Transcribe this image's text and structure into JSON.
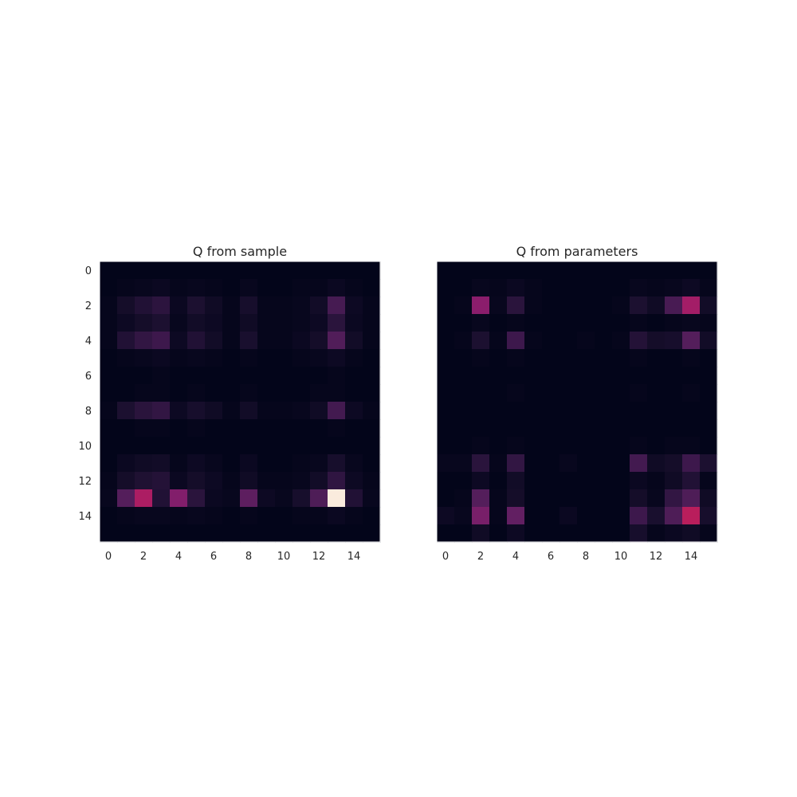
{
  "figure": {
    "background": "#ffffff"
  },
  "chart_data": [
    {
      "type": "heatmap",
      "title": "Q from sample",
      "colormap": "rocket",
      "colorbar": false,
      "vmin": 0,
      "vmax": 1,
      "x_ticks": [
        0,
        2,
        4,
        6,
        8,
        10,
        12,
        14
      ],
      "y_ticks": [
        0,
        2,
        4,
        6,
        8,
        10,
        12,
        14
      ],
      "show_y_tick_labels": true,
      "values": [
        [
          0.0,
          0.0,
          0.0,
          0.0,
          0.0,
          0.0,
          0.0,
          0.0,
          0.0,
          0.0,
          0.0,
          0.0,
          0.0,
          0.0,
          0.0,
          0.0
        ],
        [
          0.0,
          0.01,
          0.02,
          0.03,
          0.01,
          0.02,
          0.01,
          0.0,
          0.02,
          0.0,
          0.0,
          0.01,
          0.01,
          0.03,
          0.01,
          0.0
        ],
        [
          0.01,
          0.07,
          0.12,
          0.16,
          0.03,
          0.1,
          0.05,
          0.01,
          0.08,
          0.01,
          0.01,
          0.02,
          0.06,
          0.25,
          0.04,
          0.01
        ],
        [
          0.01,
          0.04,
          0.07,
          0.1,
          0.02,
          0.06,
          0.04,
          0.01,
          0.05,
          0.01,
          0.01,
          0.02,
          0.04,
          0.15,
          0.03,
          0.01
        ],
        [
          0.01,
          0.12,
          0.18,
          0.22,
          0.04,
          0.12,
          0.06,
          0.01,
          0.09,
          0.01,
          0.01,
          0.03,
          0.07,
          0.29,
          0.06,
          0.01
        ],
        [
          0.0,
          0.01,
          0.02,
          0.03,
          0.01,
          0.02,
          0.01,
          0.0,
          0.01,
          0.0,
          0.0,
          0.01,
          0.02,
          0.04,
          0.01,
          0.0
        ],
        [
          0.0,
          0.0,
          0.0,
          0.01,
          0.0,
          0.0,
          0.0,
          0.0,
          0.0,
          0.0,
          0.0,
          0.0,
          0.0,
          0.01,
          0.0,
          0.0
        ],
        [
          0.0,
          0.0,
          0.01,
          0.01,
          0.0,
          0.01,
          0.0,
          0.0,
          0.01,
          0.0,
          0.0,
          0.0,
          0.01,
          0.01,
          0.0,
          0.0
        ],
        [
          0.01,
          0.1,
          0.15,
          0.18,
          0.04,
          0.08,
          0.05,
          0.01,
          0.06,
          0.01,
          0.01,
          0.02,
          0.05,
          0.24,
          0.04,
          0.01
        ],
        [
          0.0,
          0.0,
          0.01,
          0.01,
          0.0,
          0.01,
          0.0,
          0.0,
          0.0,
          0.0,
          0.0,
          0.0,
          0.0,
          0.01,
          0.0,
          0.0
        ],
        [
          0.0,
          0.0,
          0.0,
          0.0,
          0.0,
          0.0,
          0.0,
          0.0,
          0.0,
          0.0,
          0.0,
          0.0,
          0.0,
          0.0,
          0.0,
          0.0
        ],
        [
          0.0,
          0.03,
          0.05,
          0.06,
          0.01,
          0.04,
          0.02,
          0.0,
          0.03,
          0.0,
          0.0,
          0.01,
          0.02,
          0.08,
          0.02,
          0.0
        ],
        [
          0.01,
          0.07,
          0.11,
          0.13,
          0.03,
          0.07,
          0.04,
          0.01,
          0.05,
          0.01,
          0.01,
          0.02,
          0.06,
          0.17,
          0.04,
          0.01
        ],
        [
          0.02,
          0.3,
          0.58,
          0.12,
          0.45,
          0.15,
          0.03,
          0.02,
          0.33,
          0.04,
          0.02,
          0.08,
          0.28,
          1.0,
          0.12,
          0.02
        ],
        [
          0.0,
          0.01,
          0.02,
          0.02,
          0.01,
          0.02,
          0.01,
          0.0,
          0.01,
          0.0,
          0.0,
          0.01,
          0.01,
          0.03,
          0.01,
          0.0
        ],
        [
          0.0,
          0.0,
          0.0,
          0.0,
          0.0,
          0.0,
          0.0,
          0.0,
          0.0,
          0.0,
          0.0,
          0.0,
          0.0,
          0.0,
          0.0,
          0.0
        ]
      ]
    },
    {
      "type": "heatmap",
      "title": "Q from parameters",
      "colormap": "rocket",
      "colorbar": false,
      "vmin": 0,
      "vmax": 1,
      "x_ticks": [
        0,
        2,
        4,
        6,
        8,
        10,
        12,
        14
      ],
      "y_ticks": [
        0,
        2,
        4,
        6,
        8,
        10,
        12,
        14
      ],
      "show_y_tick_labels": false,
      "values": [
        [
          0.0,
          0.0,
          0.0,
          0.0,
          0.0,
          0.0,
          0.0,
          0.0,
          0.0,
          0.0,
          0.0,
          0.0,
          0.0,
          0.0,
          0.0,
          0.0
        ],
        [
          0.0,
          0.0,
          0.02,
          0.01,
          0.03,
          0.01,
          0.0,
          0.0,
          0.0,
          0.0,
          0.0,
          0.02,
          0.01,
          0.02,
          0.04,
          0.01
        ],
        [
          0.0,
          0.01,
          0.48,
          0.02,
          0.15,
          0.01,
          0.0,
          0.0,
          0.0,
          0.0,
          0.01,
          0.1,
          0.05,
          0.26,
          0.55,
          0.06
        ],
        [
          0.0,
          0.0,
          0.02,
          0.0,
          0.01,
          0.0,
          0.0,
          0.0,
          0.0,
          0.0,
          0.0,
          0.01,
          0.0,
          0.01,
          0.02,
          0.01
        ],
        [
          0.0,
          0.01,
          0.1,
          0.01,
          0.22,
          0.01,
          0.0,
          0.0,
          0.01,
          0.0,
          0.01,
          0.13,
          0.07,
          0.08,
          0.3,
          0.06
        ],
        [
          0.0,
          0.0,
          0.01,
          0.0,
          0.01,
          0.0,
          0.0,
          0.0,
          0.0,
          0.0,
          0.0,
          0.01,
          0.0,
          0.0,
          0.01,
          0.0
        ],
        [
          0.0,
          0.0,
          0.0,
          0.0,
          0.0,
          0.0,
          0.0,
          0.0,
          0.0,
          0.0,
          0.0,
          0.0,
          0.0,
          0.0,
          0.0,
          0.0
        ],
        [
          0.0,
          0.0,
          0.0,
          0.0,
          0.01,
          0.0,
          0.0,
          0.0,
          0.0,
          0.0,
          0.0,
          0.01,
          0.0,
          0.0,
          0.01,
          0.0
        ],
        [
          0.0,
          0.0,
          0.0,
          0.0,
          0.0,
          0.0,
          0.0,
          0.0,
          0.0,
          0.0,
          0.0,
          0.0,
          0.0,
          0.0,
          0.0,
          0.0
        ],
        [
          0.0,
          0.0,
          0.0,
          0.0,
          0.0,
          0.0,
          0.0,
          0.0,
          0.0,
          0.0,
          0.0,
          0.0,
          0.0,
          0.0,
          0.0,
          0.0
        ],
        [
          0.0,
          0.0,
          0.01,
          0.0,
          0.01,
          0.0,
          0.0,
          0.0,
          0.0,
          0.0,
          0.0,
          0.01,
          0.0,
          0.01,
          0.01,
          0.0
        ],
        [
          0.02,
          0.02,
          0.15,
          0.01,
          0.18,
          0.0,
          0.0,
          0.02,
          0.0,
          0.0,
          0.0,
          0.24,
          0.05,
          0.07,
          0.22,
          0.1
        ],
        [
          0.0,
          0.0,
          0.04,
          0.0,
          0.06,
          0.0,
          0.0,
          0.0,
          0.0,
          0.0,
          0.0,
          0.03,
          0.01,
          0.05,
          0.12,
          0.01
        ],
        [
          0.0,
          0.01,
          0.3,
          0.01,
          0.07,
          0.0,
          0.0,
          0.0,
          0.0,
          0.0,
          0.0,
          0.07,
          0.02,
          0.18,
          0.28,
          0.05
        ],
        [
          0.04,
          0.02,
          0.42,
          0.01,
          0.35,
          0.0,
          0.0,
          0.03,
          0.0,
          0.0,
          0.0,
          0.22,
          0.09,
          0.28,
          0.62,
          0.08
        ],
        [
          0.0,
          0.0,
          0.05,
          0.0,
          0.04,
          0.0,
          0.0,
          0.0,
          0.0,
          0.0,
          0.0,
          0.08,
          0.01,
          0.03,
          0.05,
          0.01
        ]
      ]
    }
  ]
}
